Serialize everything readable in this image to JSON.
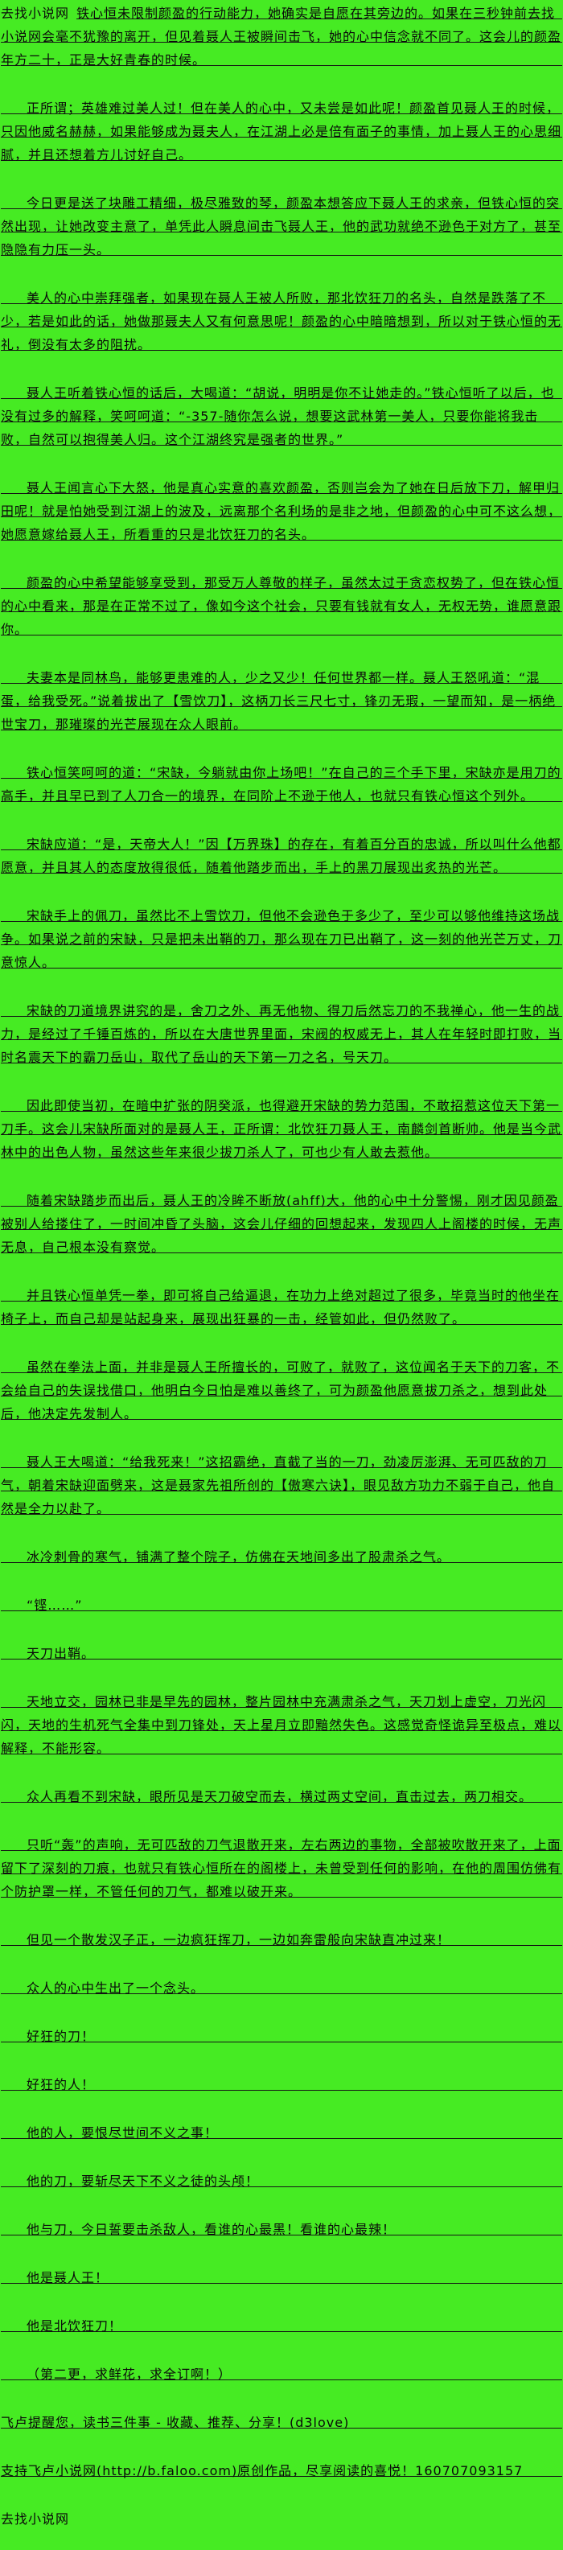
{
  "theme": {
    "background_color": "#46EB23",
    "text_color": "#0a0a0a",
    "rule_line_color": "#141414"
  },
  "site_watermark": "去找小说网",
  "paragraphs": [
    {
      "kind": "body",
      "indent": false,
      "ruled": true,
      "prefix": "去找小说网",
      "text": "铁心恒未限制颜盈的行动能力，她确实是自愿在其旁边的。如果在三秒钟前去找小说网会毫不犹豫的离开，但见着聂人王被瞬间击飞，她的心中信念就不同了。这会儿的颜盈年方二十，正是大好青春的时候。"
    },
    {
      "kind": "body",
      "indent": true,
      "ruled": true,
      "text": "正所谓；英雄难过美人过！但在美人的心中，又未尝是如此呢！颜盈首见聂人王的时候，只因他威名赫赫，如果能够成为聂夫人，在江湖上必是倍有面子的事情，加上聂人王的心思细腻，并且还想着方儿讨好自己。"
    },
    {
      "kind": "body",
      "indent": true,
      "ruled": true,
      "text": "今日更是送了块雕工精细，极尽雅致的琴，颜盈本想答应下聂人王的求亲，但铁心恒的突然出现，让她改变主意了，单凭此人瞬息间击飞聂人王，他的武功就绝不逊色于对方了，甚至隐隐有力压一头。"
    },
    {
      "kind": "body",
      "indent": true,
      "ruled": true,
      "text": "美人的心中崇拜强者，如果现在聂人王被人所败，那北饮狂刀的名头，自然是跌落了不少，若是如此的话，她做那聂夫人又有何意思呢！颜盈的心中暗暗想到，所以对于铁心恒的无礼，倒没有太多的阻扰。"
    },
    {
      "kind": "body",
      "indent": true,
      "ruled": true,
      "text": "聂人王听着铁心恒的话后，大喝道：“胡说，明明是你不让她走的。”铁心恒听了以后，也没有过多的解释，笑呵呵道：“-357-随你怎么说，想要这武林第一美人，只要你能将我击败，自然可以抱得美人归。这个江湖终究是强者的世界。”"
    },
    {
      "kind": "body",
      "indent": true,
      "ruled": true,
      "text": "聂人王闻言心下大怒，他是真心实意的喜欢颜盈，否则岂会为了她在日后放下刀，解甲归田呢！就是怕她受到江湖上的波及，远离那个名利场的是非之地，但颜盈的心中可不这么想，她愿意嫁给聂人王，所看重的只是北饮狂刀的名头。"
    },
    {
      "kind": "body",
      "indent": true,
      "ruled": true,
      "text": "颜盈的心中希望能够享受到，那受万人尊敬的样子，虽然太过于贪恋权势了，但在铁心恒的心中看来，那是在正常不过了，像如今这个社会，只要有钱就有女人，无权无势，谁愿意跟你。"
    },
    {
      "kind": "body",
      "indent": true,
      "ruled": true,
      "text": "夫妻本是同林鸟，能够更患难的人，少之又少！任何世界都一样。聂人王怒吼道：“混蛋，给我受死。”说着拔出了【雪饮刀】，这柄刀长三尺七寸，锋刃无瑕，一望而知，是一柄绝世宝刀，那璀璨的光芒展现在众人眼前。"
    },
    {
      "kind": "body",
      "indent": true,
      "ruled": true,
      "text": "铁心恒笑呵呵的道：“宋缺，今躺就由你上场吧！”在自己的三个手下里，宋缺亦是用刀的高手，并且早已到了人刀合一的境界，在同阶上不逊于他人，也就只有铁心恒这个列外。"
    },
    {
      "kind": "body",
      "indent": true,
      "ruled": true,
      "text": "宋缺应道：“是，天帝大人！”因【万界珠】的存在，有着百分百的忠诚，所以叫什么他都愿意，并且其人的态度放得很低，随着他踏步而出，手上的黑刀展现出炙热的光芒。"
    },
    {
      "kind": "body",
      "indent": true,
      "ruled": true,
      "text": "宋缺手上的佩刀，虽然比不上雪饮刀，但他不会逊色于多少了，至少可以够他维持这场战争。如果说之前的宋缺，只是把未出鞘的刀，那么现在刀已出鞘了，这一刻的他光芒万丈，刀意惊人。"
    },
    {
      "kind": "body",
      "indent": true,
      "ruled": true,
      "text": "宋缺的刀道境界讲究的是，舍刀之外、再无他物、得刀后然忘刀的不我禅心，他一生的战力，是经过了千锤百炼的，所以在大唐世界里面，宋阀的权威无上，其人在年轻时即打败，当时名震天下的霸刀岳山，取代了岳山的天下第一刀之名，号天刀。"
    },
    {
      "kind": "body",
      "indent": true,
      "ruled": true,
      "text": "因此即使当初，在暗中扩张的阴癸派，也得避开宋缺的势力范围，不敢招惹这位天下第一刀手。这会儿宋缺所面对的是聂人王，正所谓：北饮狂刀聂人王，南麟剑首断帅。他是当今武林中的出色人物，虽然这些年来很少拔刀杀人了，可也少有人敢去惹他。"
    },
    {
      "kind": "body",
      "indent": true,
      "ruled": true,
      "text": "随着宋缺踏步而出后，聂人王的冷眸不断放(ahff)大，他的心中十分警惕，刚才因见颜盈被别人给搂住了，一时间冲昏了头脑，这会儿仔细的回想起来，发现四人上阁楼的时候，无声无息，自己根本没有察觉。"
    },
    {
      "kind": "body",
      "indent": true,
      "ruled": true,
      "text": "并且铁心恒单凭一拳，即可将自己给逼退，在功力上绝对超过了很多，毕竟当时的他坐在椅子上，而自己却是站起身来，展现出狂暴的一击，经管如此，但仍然败了。"
    },
    {
      "kind": "body",
      "indent": true,
      "ruled": true,
      "text": "虽然在拳法上面，并非是聂人王所擅长的，可败了，就败了，这位闻名于天下的刀客，不会给自己的失误找借口，他明白今日怕是难以善终了，可为颜盈他愿意拔刀杀之，想到此处后，他决定先发制人。"
    },
    {
      "kind": "body",
      "indent": true,
      "ruled": true,
      "text": "聂人王大喝道：“给我死来！”这招霸绝，直截了当的一刀，劲凌厉澎湃、无可匹敌的刀气，朝着宋缺迎面劈来，这是聂家先祖所创的【傲寒六诀】，眼见敌方功力不弱于自己，他自然是全力以赴了。"
    },
    {
      "kind": "body",
      "indent": true,
      "ruled": true,
      "text": "冰冷刺骨的寒气，铺满了整个院子，仿佛在天地间多出了股肃杀之气。"
    },
    {
      "kind": "body",
      "indent": true,
      "ruled": true,
      "text": "“铿……”"
    },
    {
      "kind": "body",
      "indent": true,
      "ruled": true,
      "text": "天刀出鞘。"
    },
    {
      "kind": "body",
      "indent": true,
      "ruled": true,
      "text": "天地立交，园林已非是早先的园林，整片园林中充满肃杀之气，天刀划上虚空，刀光闪闪，天地的生机死气全集中到刀锋处，天上星月立即黯然失色。这感觉奇怪诡异至极点，难以解释，不能形容。"
    },
    {
      "kind": "body",
      "indent": true,
      "ruled": true,
      "text": "众人再看不到宋缺，眼所见是天刀破空而去，横过两丈空间，直击过去，两刀相交。"
    },
    {
      "kind": "body",
      "indent": true,
      "ruled": true,
      "text": "只听“轰”的声响，无可匹敌的刀气退散开来，左右两边的事物，全部被吹散开来了，上面留下了深刻的刀痕，也就只有铁心恒所在的阁楼上，未曾受到任何的影响，在他的周围仿佛有个防护罩一样，不管任何的刀气，都难以破开来。"
    },
    {
      "kind": "body",
      "indent": true,
      "ruled": true,
      "text": "但见一个散发汉子正，一边疯狂挥刀，一边如奔雷般向宋缺直冲过来！"
    },
    {
      "kind": "body",
      "indent": true,
      "ruled": true,
      "text": "众人的心中生出了一个念头。"
    },
    {
      "kind": "body",
      "indent": true,
      "ruled": true,
      "text": "好狂的刀！"
    },
    {
      "kind": "body",
      "indent": true,
      "ruled": true,
      "text": "好狂的人！"
    },
    {
      "kind": "body",
      "indent": true,
      "ruled": true,
      "text": "他的人，要恨尽世间不义之事！"
    },
    {
      "kind": "body",
      "indent": true,
      "ruled": true,
      "text": "他的刀，要斩尽天下不义之徒的头颅！"
    },
    {
      "kind": "body",
      "indent": true,
      "ruled": true,
      "text": "他与刀，今日誓要击杀敌人，看谁的心最黑！看谁的心最辣！"
    },
    {
      "kind": "body",
      "indent": true,
      "ruled": true,
      "text": "他是聂人王！"
    },
    {
      "kind": "body",
      "indent": true,
      "ruled": true,
      "text": "他是北饮狂刀！"
    },
    {
      "kind": "body",
      "indent": true,
      "ruled": true,
      "text": "（第二更，求鲜花，求全订啊！）"
    },
    {
      "kind": "footer",
      "indent": false,
      "ruled": true,
      "text": "飞卢提醒您，读书三件事 - 收藏、推荐、分享！(d3love)"
    },
    {
      "kind": "footer",
      "indent": false,
      "ruled": true,
      "text": "支持飞卢小说网(http://b.faloo.com)原创作品，尽享阅读的喜悦！160707093157"
    },
    {
      "kind": "watermark",
      "indent": false,
      "ruled": false,
      "text": "去找小说网"
    }
  ]
}
